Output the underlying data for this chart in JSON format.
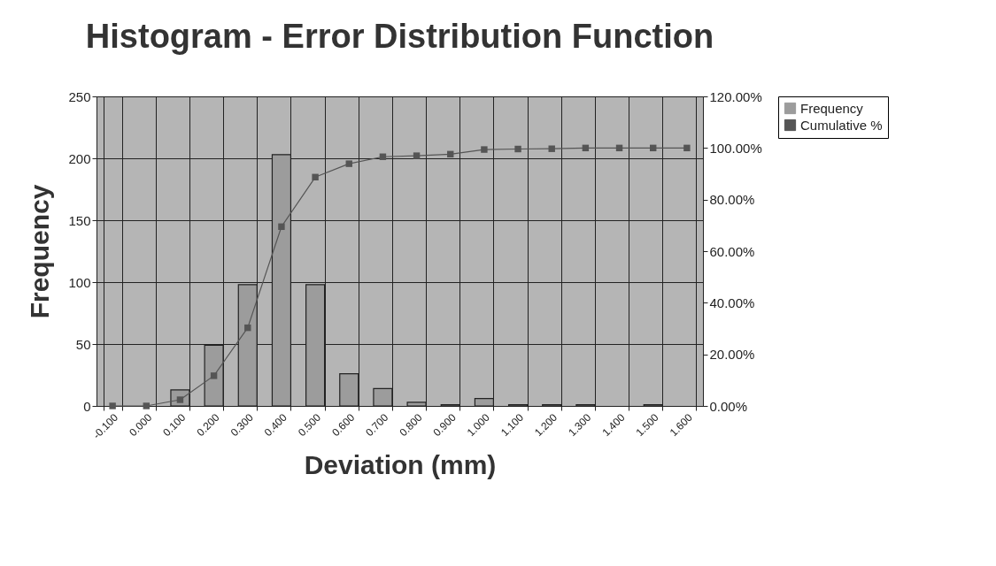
{
  "chart_data": {
    "type": "bar",
    "title": "Histogram - Error Distribution Function",
    "xlabel": "Deviation (mm)",
    "ylabel": "Frequency",
    "categories": [
      "-0.100",
      "0.000",
      "0.100",
      "0.200",
      "0.300",
      "0.400",
      "0.500",
      "0.600",
      "0.700",
      "0.800",
      "0.900",
      "1.000",
      "1.100",
      "1.200",
      "1.300",
      "1.400",
      "1.500",
      "1.600"
    ],
    "series": [
      {
        "name": "Frequency",
        "color": "#9c9c9c",
        "values": [
          0,
          0,
          13,
          49,
          98,
          203,
          98,
          26,
          14,
          3,
          1,
          6,
          1,
          1,
          1,
          0,
          1,
          0
        ]
      },
      {
        "name": "Cumulative %",
        "type": "line",
        "axis": "y2",
        "color": "#555555",
        "values": [
          0,
          0,
          2.4,
          11.7,
          30.3,
          69.5,
          88.7,
          93.9,
          96.6,
          97,
          97.6,
          99.4,
          99.6,
          99.7,
          100,
          100,
          100,
          100
        ]
      }
    ],
    "ylim": [
      0,
      250
    ],
    "yticks": [
      0,
      50,
      100,
      150,
      200,
      250
    ],
    "y2lim": [
      0,
      120
    ],
    "y2ticks": [
      {
        "value": 0,
        "label": "0.00%"
      },
      {
        "value": 20,
        "label": "20.00%"
      },
      {
        "value": 40,
        "label": "40.00%"
      },
      {
        "value": 60,
        "label": "60.00%"
      },
      {
        "value": 80,
        "label": "80.00%"
      },
      {
        "value": 100,
        "label": "100.00%"
      },
      {
        "value": 120,
        "label": "120.00%"
      }
    ],
    "grid": true,
    "legend": "right",
    "marker": "square",
    "line_style": "solid"
  }
}
